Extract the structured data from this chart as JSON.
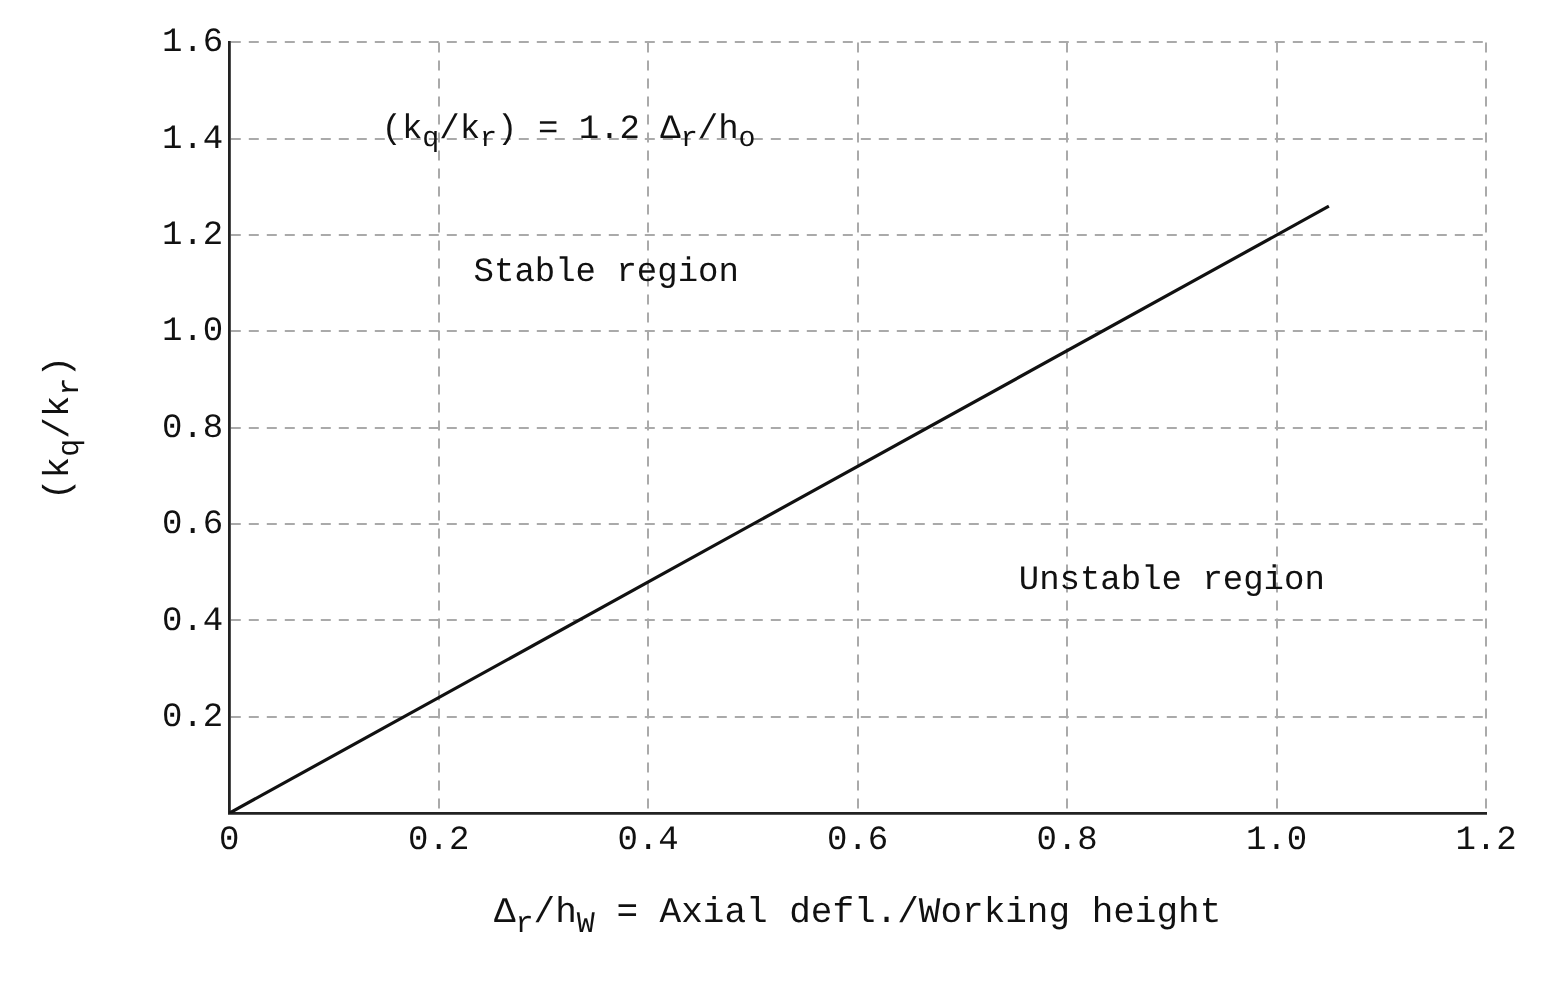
{
  "chart_data": {
    "type": "line",
    "xlabel": "Δ$_{r}$/h$_{W}$ = Axial defl./Working height",
    "ylabel": "(k$_{q}$/k$_{r}$)",
    "x": [
      0,
      1.05
    ],
    "series": [
      {
        "color": "#111111",
        "values": [
          0,
          1.26
        ]
      }
    ],
    "xlim": [
      0,
      1.2
    ],
    "xticks": [
      0,
      0.2,
      0.4,
      0.6,
      0.8,
      {
        "value": 1,
        "label": "1.0"
      },
      1.2
    ],
    "ylim": [
      0,
      1.6
    ],
    "yticks": [
      {
        "value": 0,
        "label": null
      },
      0.2,
      0.4,
      0.6,
      0.8,
      {
        "value": 1,
        "label": "1.0"
      },
      1.2,
      1.4,
      1.6
    ],
    "grid": true,
    "legend": false,
    "marker": "none",
    "line_style": "solid",
    "annotations": [
      "(k$_{q}$/k$_{r}$) = 1.2 Δ$_{r}$/h$_{o}$",
      "Stable region",
      "Unstable region"
    ]
  }
}
